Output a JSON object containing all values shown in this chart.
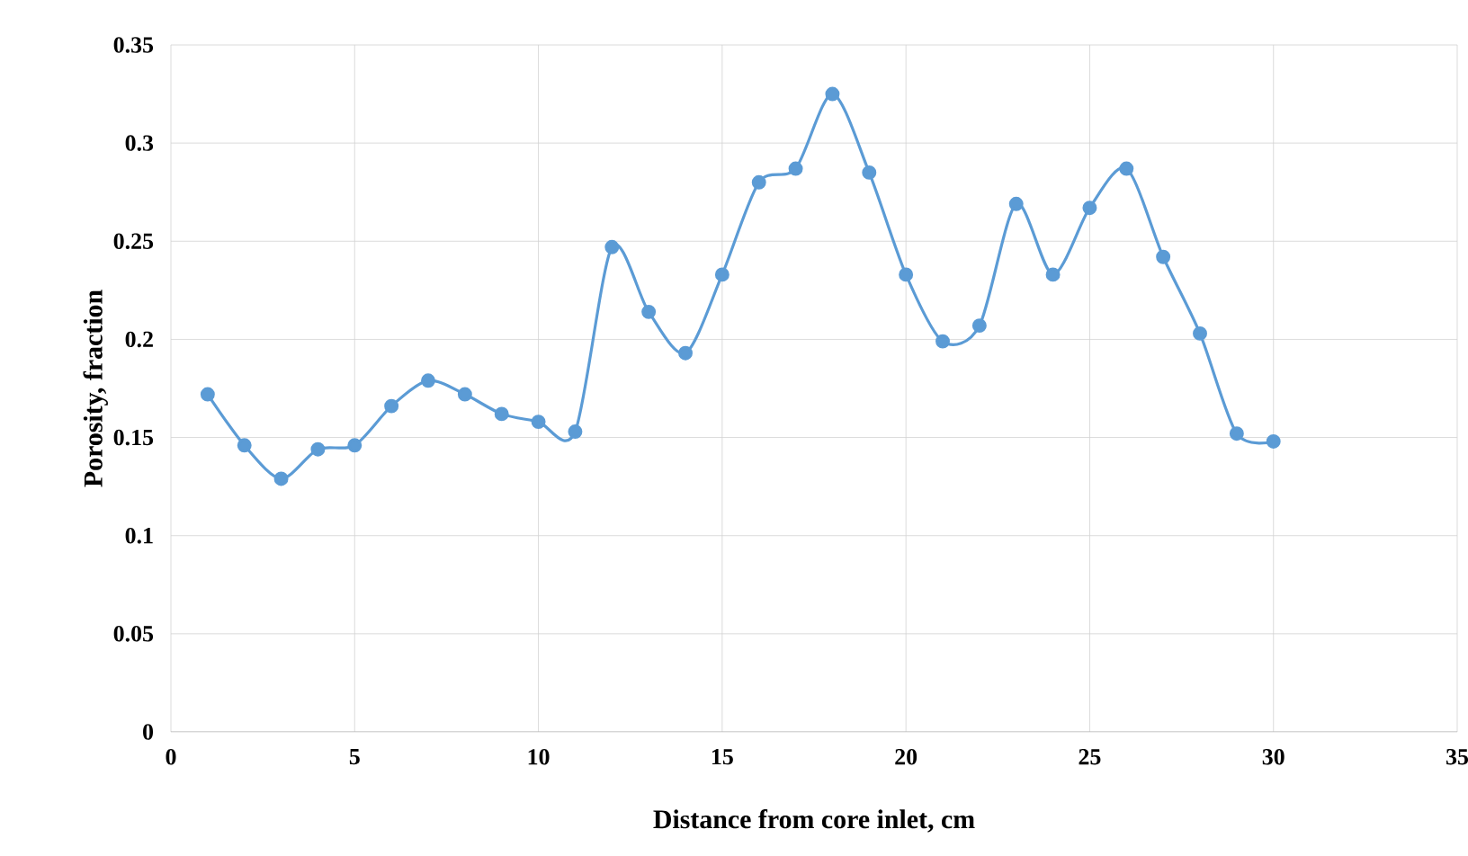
{
  "chart_data": {
    "type": "line",
    "xlabel": "Distance from core inlet, cm",
    "ylabel": "Porosity, fraction",
    "x": [
      1,
      2,
      3,
      4,
      5,
      6,
      7,
      8,
      9,
      10,
      11,
      12,
      13,
      14,
      15,
      16,
      17,
      18,
      19,
      20,
      21,
      22,
      23,
      24,
      25,
      26,
      27,
      28,
      29,
      30
    ],
    "series": [
      {
        "color": "#5b9bd5",
        "values": [
          0.172,
          0.146,
          0.129,
          0.144,
          0.146,
          0.166,
          0.179,
          0.172,
          0.162,
          0.158,
          0.153,
          0.247,
          0.214,
          0.193,
          0.233,
          0.28,
          0.287,
          0.325,
          0.285,
          0.233,
          0.199,
          0.207,
          0.269,
          0.233,
          0.267,
          0.287,
          0.242,
          0.203,
          0.152,
          0.148
        ]
      }
    ],
    "xlim": [
      0,
      35
    ],
    "xticks": [
      0,
      5,
      10,
      15,
      20,
      25,
      30,
      35
    ],
    "ylim": [
      0,
      0.35
    ],
    "yticks": [
      0,
      0.05,
      0.1,
      0.15,
      0.2,
      0.25,
      0.3,
      0.35
    ],
    "grid": true,
    "marker": "circle",
    "line_style": "solid"
  }
}
